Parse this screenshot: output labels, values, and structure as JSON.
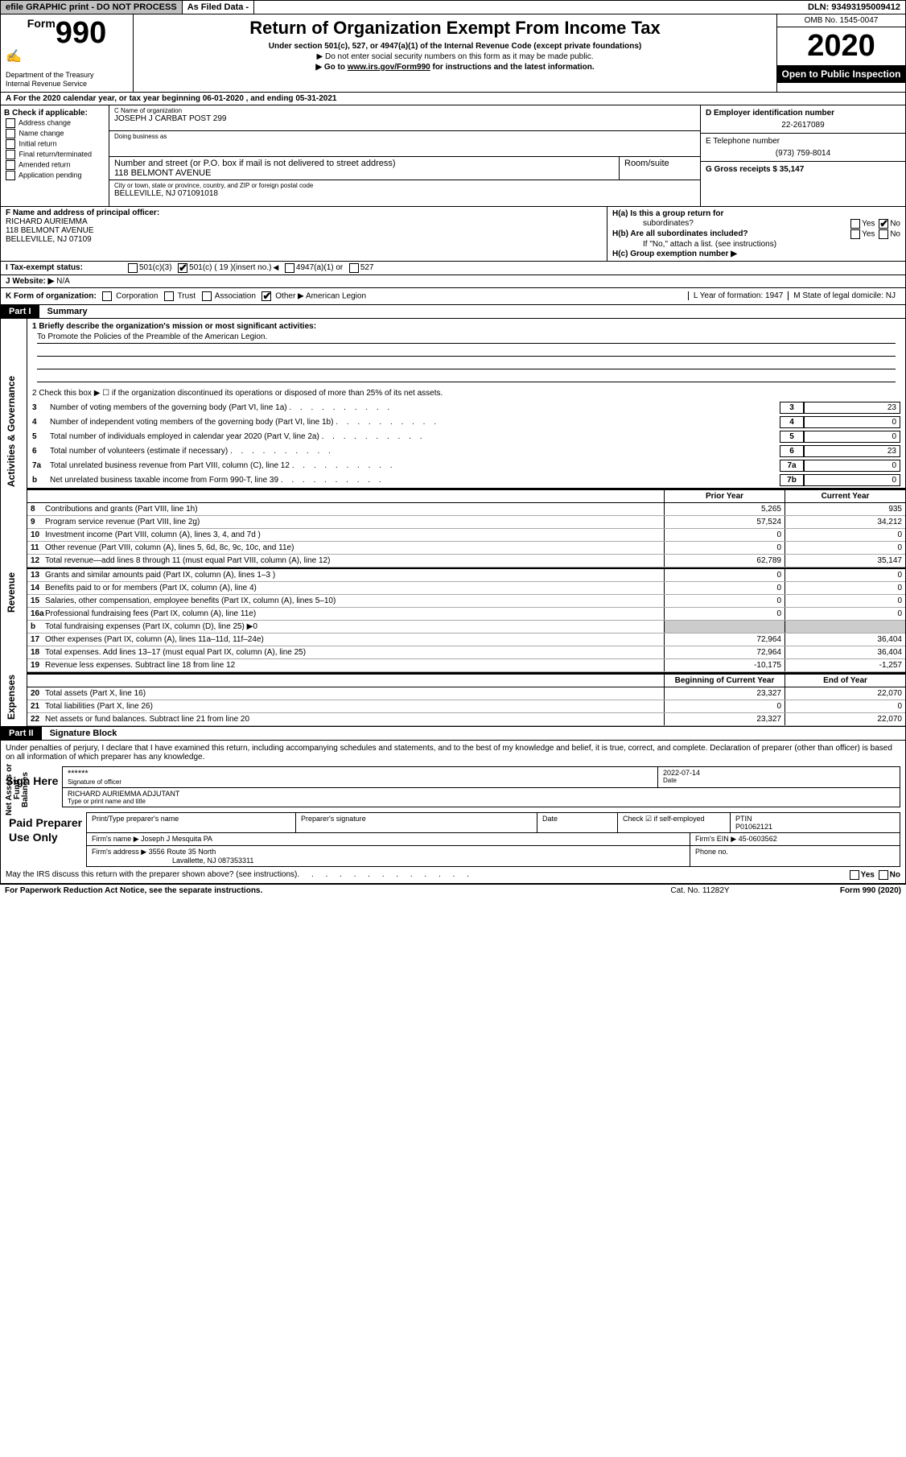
{
  "topbar": {
    "efile": "efile GRAPHIC print - DO NOT PROCESS",
    "asfiled": "As Filed Data -",
    "dln": "DLN: 93493195009412"
  },
  "header": {
    "form_word": "Form",
    "form_num": "990",
    "dept": "Department of the Treasury\nInternal Revenue Service",
    "title": "Return of Organization Exempt From Income Tax",
    "sub": "Under section 501(c), 527, or 4947(a)(1) of the Internal Revenue Code (except private foundations)",
    "sub2": "▶ Do not enter social security numbers on this form as it may be made public.",
    "sub3_pre": "▶ Go to ",
    "sub3_link": "www.irs.gov/Form990",
    "sub3_post": " for instructions and the latest information.",
    "omb": "OMB No. 1545-0047",
    "year": "2020",
    "open": "Open to Public Inspection"
  },
  "rowA": "A  For the 2020 calendar year, or tax year beginning 06-01-2020   , and ending 05-31-2021",
  "colB": {
    "header": "B Check if applicable:",
    "items": [
      "Address change",
      "Name change",
      "Initial return",
      "Final return/terminated",
      "Amended return",
      "Application pending"
    ]
  },
  "colC": {
    "name_lbl": "C Name of organization",
    "name": "JOSEPH J CARBAT POST 299",
    "dba_lbl": "Doing business as",
    "addr_lbl": "Number and street (or P.O. box if mail is not delivered to street address)",
    "addr": "118 BELMONT AVENUE",
    "room_lbl": "Room/suite",
    "city_lbl": "City or town, state or province, country, and ZIP or foreign postal code",
    "city": "BELLEVILLE, NJ  071091018"
  },
  "colDE": {
    "d_lbl": "D Employer identification number",
    "d_val": "22-2617089",
    "e_lbl": "E Telephone number",
    "e_val": "(973) 759-8014",
    "g_lbl": "G Gross receipts $ 35,147"
  },
  "rowF": {
    "lbl": "F  Name and address of principal officer:",
    "name": "RICHARD AURIEMMA",
    "addr1": "118 BELMONT AVENUE",
    "addr2": "BELLEVILLE, NJ  07109"
  },
  "rowH": {
    "ha": "H(a)  Is this a group return for",
    "ha2": "subordinates?",
    "hb": "H(b)  Are all subordinates included?",
    "hb2": "If \"No,\" attach a list. (see instructions)",
    "hc": "H(c)  Group exemption number ▶",
    "yes": "Yes",
    "no": "No"
  },
  "rowI": {
    "lbl": "I   Tax-exempt status:",
    "opts": [
      "501(c)(3)",
      "501(c) ( 19 )",
      "(insert no.)",
      "4947(a)(1) or",
      "527"
    ]
  },
  "rowJ": {
    "lbl": "J   Website: ▶",
    "val": " N/A"
  },
  "rowK": {
    "lbl": "K Form of organization:",
    "opts": [
      "Corporation",
      "Trust",
      "Association",
      "Other ▶"
    ],
    "other": "American Legion",
    "l": "L Year of formation: 1947",
    "m": "M State of legal domicile: NJ"
  },
  "part1": {
    "num": "Part I",
    "title": "Summary"
  },
  "summary": {
    "l1": "1  Briefly describe the organization's mission or most significant activities:",
    "mission": "To Promote the Policies of the Preamble of the American Legion.",
    "l2": "2  Check this box ▶ ☐  if the organization discontinued its operations or disposed of more than 25% of its net assets.",
    "lines_gov": [
      {
        "n": "3",
        "t": "Number of voting members of the governing body (Part VI, line 1a)",
        "bn": "3",
        "v": "23"
      },
      {
        "n": "4",
        "t": "Number of independent voting members of the governing body (Part VI, line 1b)",
        "bn": "4",
        "v": "0"
      },
      {
        "n": "5",
        "t": "Total number of individuals employed in calendar year 2020 (Part V, line 2a)",
        "bn": "5",
        "v": "0"
      },
      {
        "n": "6",
        "t": "Total number of volunteers (estimate if necessary)",
        "bn": "6",
        "v": "23"
      },
      {
        "n": "7a",
        "t": "Total unrelated business revenue from Part VIII, column (C), line 12",
        "bn": "7a",
        "v": "0"
      },
      {
        "n": "b",
        "t": "Net unrelated business taxable income from Form 990-T, line 39",
        "bn": "7b",
        "v": "0"
      }
    ],
    "col_hdr": {
      "prior": "Prior Year",
      "current": "Current Year"
    },
    "revenue": [
      {
        "n": "8",
        "t": "Contributions and grants (Part VIII, line 1h)",
        "p": "5,265",
        "c": "935"
      },
      {
        "n": "9",
        "t": "Program service revenue (Part VIII, line 2g)",
        "p": "57,524",
        "c": "34,212"
      },
      {
        "n": "10",
        "t": "Investment income (Part VIII, column (A), lines 3, 4, and 7d )",
        "p": "0",
        "c": "0"
      },
      {
        "n": "11",
        "t": "Other revenue (Part VIII, column (A), lines 5, 6d, 8c, 9c, 10c, and 11e)",
        "p": "0",
        "c": "0"
      },
      {
        "n": "12",
        "t": "Total revenue—add lines 8 through 11 (must equal Part VIII, column (A), line 12)",
        "p": "62,789",
        "c": "35,147"
      }
    ],
    "expenses": [
      {
        "n": "13",
        "t": "Grants and similar amounts paid (Part IX, column (A), lines 1–3 )",
        "p": "0",
        "c": "0"
      },
      {
        "n": "14",
        "t": "Benefits paid to or for members (Part IX, column (A), line 4)",
        "p": "0",
        "c": "0"
      },
      {
        "n": "15",
        "t": "Salaries, other compensation, employee benefits (Part IX, column (A), lines 5–10)",
        "p": "0",
        "c": "0"
      },
      {
        "n": "16a",
        "t": "Professional fundraising fees (Part IX, column (A), line 11e)",
        "p": "0",
        "c": "0"
      },
      {
        "n": "b",
        "t": "Total fundraising expenses (Part IX, column (D), line 25) ▶0",
        "p": "",
        "c": "",
        "shade": true
      },
      {
        "n": "17",
        "t": "Other expenses (Part IX, column (A), lines 11a–11d, 11f–24e)",
        "p": "72,964",
        "c": "36,404"
      },
      {
        "n": "18",
        "t": "Total expenses. Add lines 13–17 (must equal Part IX, column (A), line 25)",
        "p": "72,964",
        "c": "36,404"
      },
      {
        "n": "19",
        "t": "Revenue less expenses. Subtract line 18 from line 12",
        "p": "-10,175",
        "c": "-1,257"
      }
    ],
    "bal_hdr": {
      "begin": "Beginning of Current Year",
      "end": "End of Year"
    },
    "balances": [
      {
        "n": "20",
        "t": "Total assets (Part X, line 16)",
        "p": "23,327",
        "c": "22,070"
      },
      {
        "n": "21",
        "t": "Total liabilities (Part X, line 26)",
        "p": "0",
        "c": "0"
      },
      {
        "n": "22",
        "t": "Net assets or fund balances. Subtract line 21 from line 20",
        "p": "23,327",
        "c": "22,070"
      }
    ]
  },
  "part2": {
    "num": "Part II",
    "title": "Signature Block"
  },
  "sig": {
    "perjury": "Under penalties of perjury, I declare that I have examined this return, including accompanying schedules and statements, and to the best of my knowledge and belief, it is true, correct, and complete. Declaration of preparer (other than officer) is based on all information of which preparer has any knowledge.",
    "sign_here": "Sign Here",
    "stars": "******",
    "sig_officer": "Signature of officer",
    "date_lbl": "Date",
    "date_val": "2022-07-14",
    "officer_name": "RICHARD AURIEMMA ADJUTANT",
    "type_name": "Type or print name and title",
    "paid_lbl": "Paid Preparer Use Only",
    "prep_name_lbl": "Print/Type preparer's name",
    "prep_sig_lbl": "Preparer's signature",
    "check_self": "Check ☑ if self-employed",
    "ptin_lbl": "PTIN",
    "ptin": "P01062121",
    "firm_name_lbl": "Firm's name   ▶",
    "firm_name": "Joseph J Mesquita PA",
    "firm_ein_lbl": "Firm's EIN ▶",
    "firm_ein": "45-0603562",
    "firm_addr_lbl": "Firm's address ▶",
    "firm_addr": "3556 Route 35 North",
    "firm_city": "Lavallette, NJ  087353311",
    "phone_lbl": "Phone no.",
    "discuss": "May the IRS discuss this return with the preparer shown above? (see instructions)"
  },
  "footer": {
    "left": "For Paperwork Reduction Act Notice, see the separate instructions.",
    "center": "Cat. No. 11282Y",
    "right": "Form 990 (2020)"
  },
  "vtabs": {
    "gov": "Activities & Governance",
    "rev": "Revenue",
    "exp": "Expenses",
    "net": "Net Assets or Fund Balances"
  }
}
